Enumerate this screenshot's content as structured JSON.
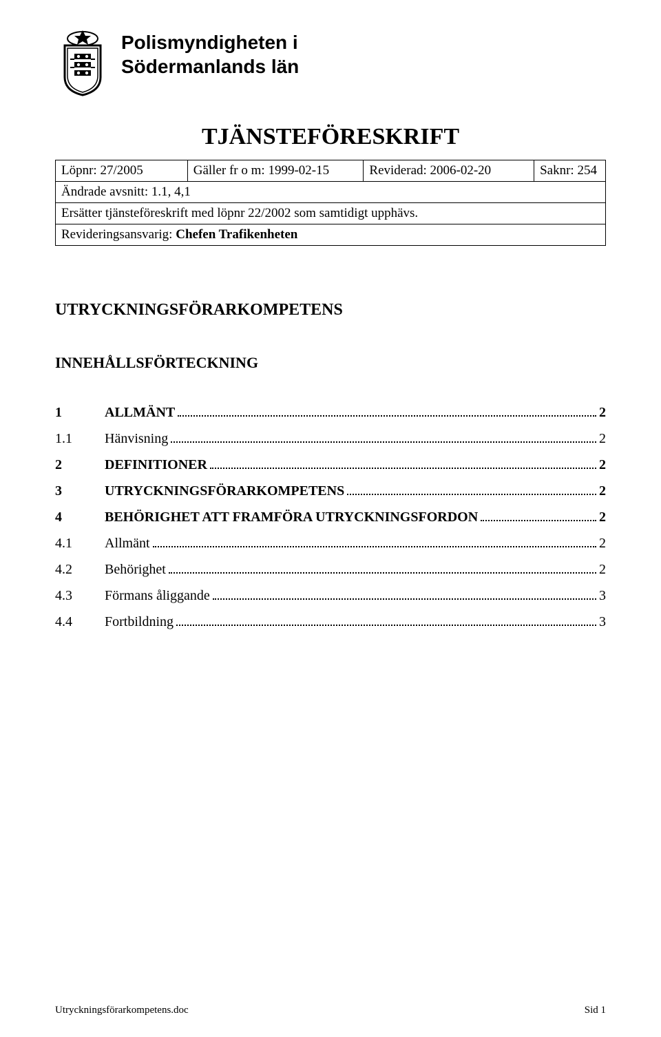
{
  "header": {
    "org_line1": "Polismyndigheten i",
    "org_line2": "Södermanlands län",
    "doc_title": "TJÄNSTEFÖRESKRIFT"
  },
  "meta": {
    "lopnr_label": "Löpnr: ",
    "lopnr_value": "27/2005",
    "galler_label": "Gäller fr o m: ",
    "galler_value": "1999-02-15",
    "reviderad_label": "Reviderad: ",
    "reviderad_value": "2006-02-20",
    "saknr_label": "Saknr: ",
    "saknr_value": "254",
    "avsnitt_label": "Ändrade avsnitt: ",
    "avsnitt_value": "1.1, 4,1",
    "replace_text": "Ersätter tjänsteföreskrift med löpnr 22/2002 som samtidigt upphävs.",
    "reviewer_label": "Revideringsansvarig: ",
    "reviewer_value": "Chefen Trafikenheten"
  },
  "main": {
    "main_heading": "UTRYCKNINGSFÖRARKOMPETENS",
    "toc_heading": "INNEHÅLLSFÖRTECKNING",
    "toc": [
      {
        "num": "1",
        "label": "ALLMÄNT",
        "page": "2",
        "bold": true
      },
      {
        "num": "1.1",
        "label": "Hänvisning",
        "page": "2",
        "bold": false
      },
      {
        "num": "2",
        "label": "DEFINITIONER",
        "page": "2",
        "bold": true
      },
      {
        "num": "3",
        "label": "UTRYCKNINGSFÖRARKOMPETENS",
        "page": "2",
        "bold": true
      },
      {
        "num": "4",
        "label": "BEHÖRIGHET ATT FRAMFÖRA UTRYCKNINGSFORDON",
        "page": "2",
        "bold": true
      },
      {
        "num": "4.1",
        "label": "Allmänt",
        "page": "2",
        "bold": false
      },
      {
        "num": "4.2",
        "label": "Behörighet",
        "page": "2",
        "bold": false
      },
      {
        "num": "4.3",
        "label": "Förmans åliggande",
        "page": "3",
        "bold": false
      },
      {
        "num": "4.4",
        "label": "Fortbildning",
        "page": "3",
        "bold": false
      }
    ]
  },
  "footer": {
    "filename": "Utryckningsförarkompetens.doc",
    "page_label": "Sid 1"
  }
}
